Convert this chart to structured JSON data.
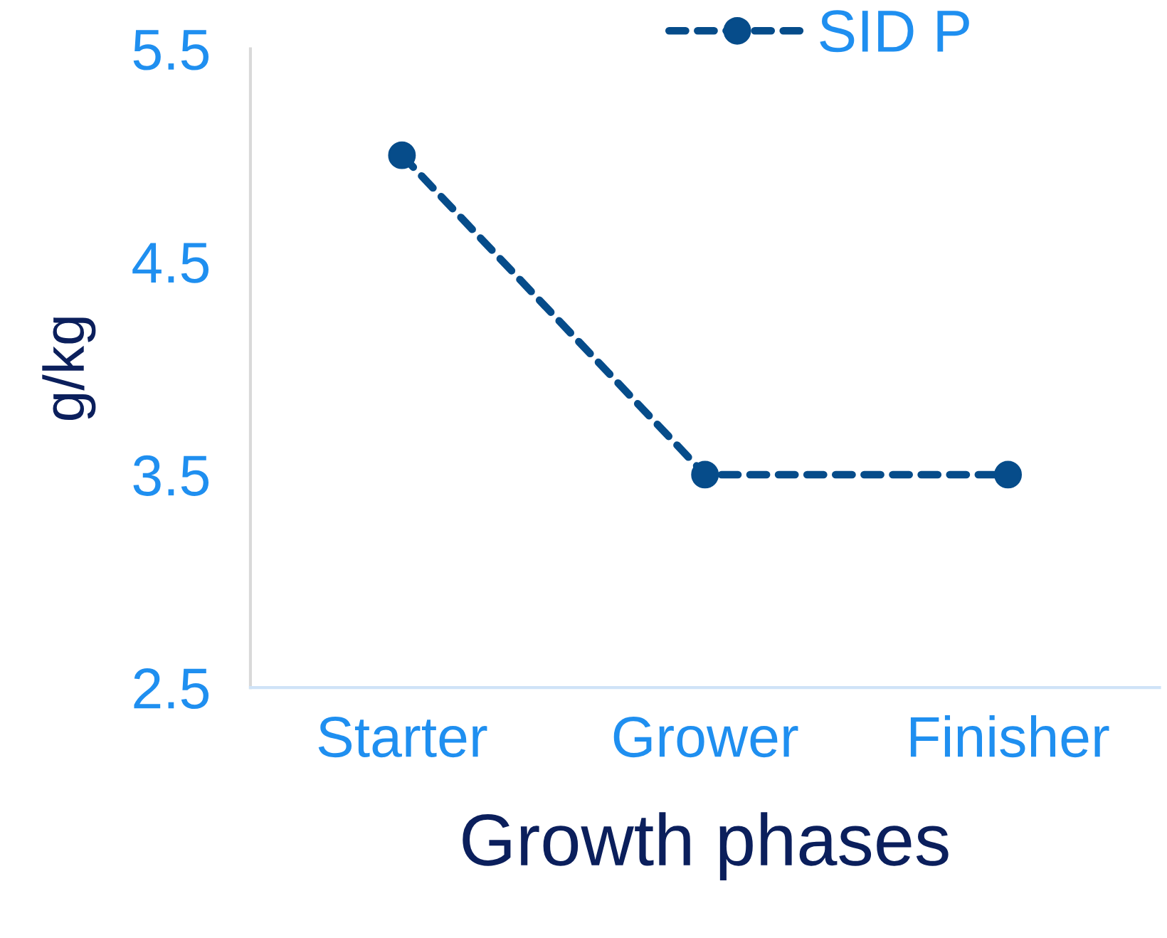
{
  "chart_data": {
    "type": "line",
    "xlabel": "Growth phases",
    "ylabel": "g/kg",
    "categories": [
      "Starter",
      "Grower",
      "Finisher"
    ],
    "series": [
      {
        "name": "SID P",
        "color": "#064c8a",
        "values": [
          5.0,
          3.5,
          3.5
        ]
      }
    ],
    "ylim": [
      2.5,
      5.5
    ],
    "yticks": [
      2.5,
      3.5,
      4.5,
      5.5
    ],
    "legend": "top right",
    "marker": "circle",
    "line_style": "dashed"
  }
}
